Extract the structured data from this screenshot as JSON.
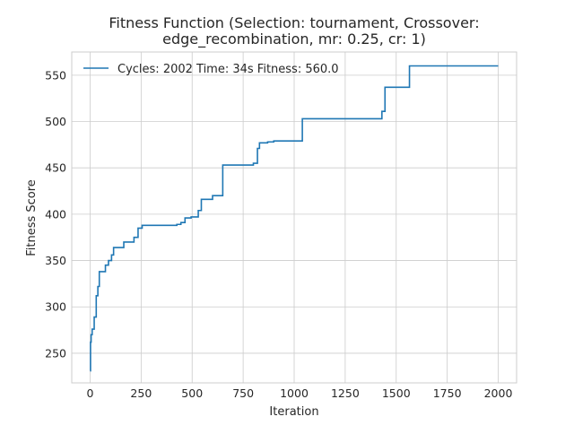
{
  "chart_data": {
    "type": "line",
    "title_line1": "Fitness Function (Selection: tournament, Crossover:",
    "title_line2": "edge_recombination, mr: 0.25, cr: 1)",
    "xlabel": "Iteration",
    "ylabel": "Fitness Score",
    "xlim": [
      -90,
      2090
    ],
    "ylim": [
      218,
      575
    ],
    "x_ticks": [
      0,
      250,
      500,
      750,
      1000,
      1250,
      1500,
      1750,
      2000
    ],
    "y_ticks": [
      250,
      300,
      350,
      400,
      450,
      500,
      550
    ],
    "grid": true,
    "legend_position": "top-left",
    "line_color": "#1f77b4",
    "series": [
      {
        "name": "Cycles: 2002 Time: 34s Fitness: 560.0",
        "step": "post",
        "x": [
          0,
          2,
          5,
          10,
          20,
          30,
          38,
          45,
          75,
          90,
          105,
          115,
          125,
          165,
          215,
          235,
          255,
          315,
          425,
          445,
          465,
          495,
          530,
          545,
          600,
          650,
          800,
          820,
          830,
          840,
          870,
          900,
          1040,
          1430,
          1445,
          1565,
          2000
        ],
        "y": [
          231,
          262,
          270,
          276,
          289,
          312,
          322,
          338,
          345,
          350,
          356,
          364,
          364,
          370,
          375,
          385,
          388,
          388,
          389,
          391,
          396,
          397,
          404,
          416,
          420,
          453,
          455,
          471,
          477,
          477,
          478,
          479,
          503,
          511,
          537,
          560,
          560
        ]
      }
    ]
  }
}
